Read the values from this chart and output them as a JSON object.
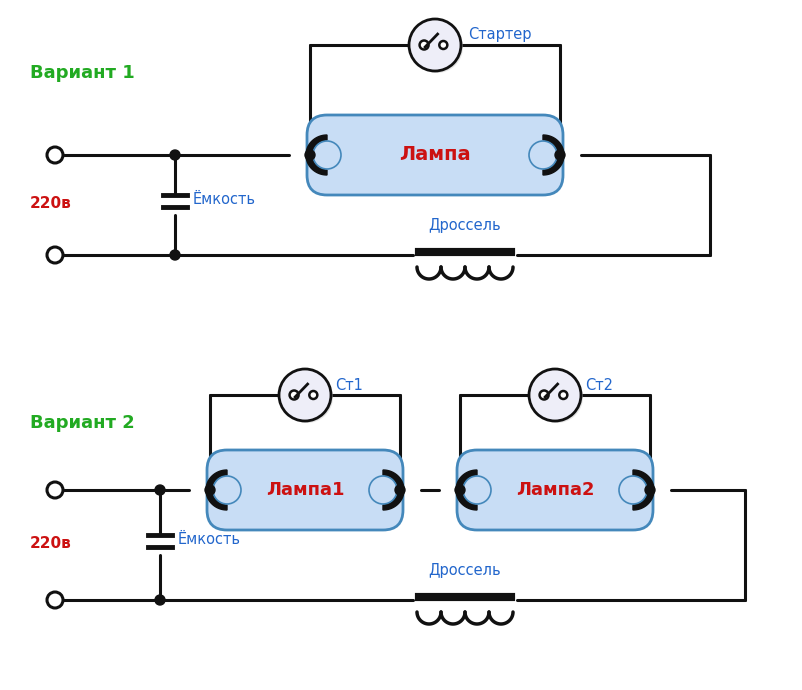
{
  "bg_color": "#ffffff",
  "variant1_label": "Вариант 1",
  "variant2_label": "Вариант 2",
  "starter_label": "Стартер",
  "st1_label": "Ст1",
  "st2_label": "Ст2",
  "lampa_label": "Лампа",
  "lampa1_label": "Лампа1",
  "lampa2_label": "Лампа2",
  "emkost_label": "Ёмкость",
  "drossel_label": "Дроссель",
  "voltage_label": "220в",
  "green_color": "#22aa22",
  "red_color": "#cc1111",
  "blue_color": "#2266cc",
  "black_color": "#111111",
  "lamp_fill": "#c8ddf5",
  "lamp_stroke": "#4488bb",
  "lw": 2.2
}
